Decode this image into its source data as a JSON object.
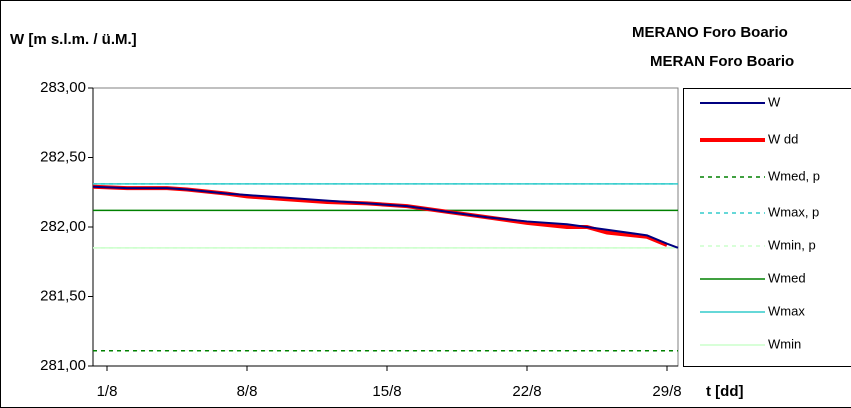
{
  "chart_data": {
    "type": "line",
    "title": "MERANO Foro Boario",
    "subtitle": "MERAN Foro Boario",
    "y_label": "W [m s.l.m. / ü.M.]",
    "x_label": "t [dd]",
    "xlim": [
      0.3,
      29.55
    ],
    "xticks": [
      {
        "value": 1,
        "label": "1/8"
      },
      {
        "value": 8,
        "label": "8/8"
      },
      {
        "value": 15,
        "label": "15/8"
      },
      {
        "value": 22,
        "label": "22/8"
      },
      {
        "value": 29,
        "label": "29/8"
      }
    ],
    "ylim": [
      281,
      283
    ],
    "yticks": [
      {
        "value": 281,
        "label": "281,00"
      },
      {
        "value": 281.5,
        "label": "281,50"
      },
      {
        "value": 282,
        "label": "282,00"
      },
      {
        "value": 282.5,
        "label": "282,50"
      },
      {
        "value": 283,
        "label": "283,00"
      }
    ],
    "series": [
      {
        "name": "W",
        "color": "#000080",
        "dash": false,
        "width": 2,
        "x": [
          0.3,
          2,
          4,
          5,
          7,
          8,
          10,
          12,
          14,
          16,
          18,
          20,
          22,
          24,
          26,
          28,
          29,
          29.55
        ],
        "values": [
          282.29,
          282.28,
          282.28,
          282.27,
          282.24,
          282.23,
          282.21,
          282.19,
          282.17,
          282.15,
          282.11,
          282.07,
          282.04,
          282.02,
          281.98,
          281.94,
          281.88,
          281.85
        ]
      },
      {
        "name": "W dd",
        "color": "#ff0000",
        "dash": false,
        "width": 4,
        "x": [
          0.3,
          2,
          4,
          5,
          7,
          8,
          10,
          12,
          14,
          16,
          18,
          20,
          22,
          24,
          25,
          26,
          28,
          29
        ],
        "values": [
          282.29,
          282.28,
          282.28,
          282.27,
          282.24,
          282.22,
          282.2,
          282.18,
          282.17,
          282.15,
          282.11,
          282.07,
          282.03,
          282.0,
          282.0,
          281.96,
          281.93,
          281.87
        ]
      },
      {
        "name": "Wmed, p",
        "color": "#008000",
        "dash": true,
        "width": 1.5,
        "x": [
          0.3,
          29.55
        ],
        "values": [
          281.11,
          281.11
        ]
      },
      {
        "name": "Wmax, p",
        "color": "#33cccc",
        "dash": true,
        "width": 1.5,
        "x": [
          0.3,
          29.55
        ],
        "values": [
          282.31,
          282.31
        ]
      },
      {
        "name": "Wmin, p",
        "color": "#ccffcc",
        "dash": true,
        "width": 1.5,
        "x": [
          0.3,
          29.55
        ],
        "values": [
          281.85,
          281.85
        ]
      },
      {
        "name": "Wmed",
        "color": "#008000",
        "dash": false,
        "width": 1.5,
        "x": [
          0.3,
          29.55
        ],
        "values": [
          282.12,
          282.12
        ]
      },
      {
        "name": "Wmax",
        "color": "#33cccc",
        "dash": false,
        "width": 1.5,
        "x": [
          0.3,
          29.55
        ],
        "values": [
          282.31,
          282.31
        ]
      },
      {
        "name": "Wmin",
        "color": "#ccffcc",
        "dash": false,
        "width": 1.5,
        "x": [
          0.3,
          29.55
        ],
        "values": [
          281.85,
          281.85
        ]
      }
    ]
  }
}
